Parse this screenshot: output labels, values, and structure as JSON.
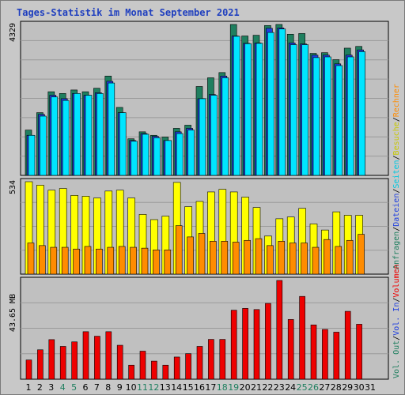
{
  "title": "Tages-Statistik im Monat September 2021",
  "colors": {
    "anfragen": "#1f7f5f",
    "dateien": "#1f3fdf",
    "seiten": "#00e5ff",
    "besuche": "#ffff00",
    "rechner": "#ff8c00",
    "volumen": "#ee0000",
    "weekend_label": "#1f7f5f",
    "label_default": "#000000"
  },
  "legend_right": {
    "top": [
      {
        "text": "Anfragen",
        "color": "#1f7f5f"
      },
      {
        "text": "/",
        "color": "#000000"
      },
      {
        "text": "Dateien",
        "color": "#1f3fdf"
      },
      {
        "text": "/",
        "color": "#000000"
      },
      {
        "text": "Seiten",
        "color": "#00c8e0"
      },
      {
        "text": "/",
        "color": "#000000"
      },
      {
        "text": "Besuche",
        "color": "#c8c800"
      },
      {
        "text": "/",
        "color": "#000000"
      },
      {
        "text": "Rechner",
        "color": "#ff8c00"
      }
    ],
    "bottom": [
      {
        "text": "Vol. Out",
        "color": "#1f7f5f"
      },
      {
        "text": "/",
        "color": "#000000"
      },
      {
        "text": "Vol. In",
        "color": "#1f3fdf"
      },
      {
        "text": "/",
        "color": "#000000"
      },
      {
        "text": "Volumen",
        "color": "#ee0000"
      }
    ]
  },
  "chart_data": [
    {
      "type": "bar",
      "panel": "top",
      "ymax_label": "4329",
      "ylim": [
        0,
        4329
      ],
      "categories": [
        "1",
        "2",
        "3",
        "4",
        "5",
        "6",
        "7",
        "8",
        "9",
        "10",
        "11",
        "12",
        "13",
        "14",
        "15",
        "16",
        "17",
        "18",
        "19",
        "20",
        "21",
        "22",
        "23",
        "24",
        "25",
        "26",
        "27",
        "28",
        "29",
        "30"
      ],
      "series": [
        {
          "name": "Anfragen",
          "key": "anfragen",
          "values": [
            1300,
            1800,
            2400,
            2350,
            2450,
            2400,
            2500,
            2850,
            1950,
            1050,
            1250,
            1150,
            1100,
            1350,
            1440,
            2550,
            2800,
            2950,
            4330,
            4000,
            4020,
            4300,
            4330,
            4050,
            4070,
            3500,
            3520,
            3320,
            3650,
            3700
          ]
        },
        {
          "name": "Dateien",
          "key": "dateien",
          "values": [
            1150,
            1750,
            2300,
            2200,
            2350,
            2300,
            2370,
            2700,
            1800,
            1000,
            1200,
            1120,
            1000,
            1250,
            1350,
            2200,
            2320,
            2850,
            4000,
            3790,
            3800,
            4220,
            4230,
            3800,
            3770,
            3450,
            3450,
            3200,
            3450,
            3600
          ]
        },
        {
          "name": "Seiten",
          "key": "seiten",
          "values": [
            1150,
            1700,
            2250,
            2150,
            2350,
            2300,
            2350,
            2650,
            1800,
            980,
            1180,
            1080,
            1000,
            1200,
            1300,
            2200,
            2300,
            2800,
            3990,
            3780,
            3790,
            4100,
            4200,
            3750,
            3750,
            3380,
            3400,
            3150,
            3400,
            3550
          ]
        }
      ]
    },
    {
      "type": "bar",
      "panel": "middle",
      "ymax_label": "534",
      "ylim": [
        0,
        534
      ],
      "categories": [
        "1",
        "2",
        "3",
        "4",
        "5",
        "6",
        "7",
        "8",
        "9",
        "10",
        "11",
        "12",
        "13",
        "14",
        "15",
        "16",
        "17",
        "18",
        "19",
        "20",
        "21",
        "22",
        "23",
        "24",
        "25",
        "26",
        "27",
        "28",
        "29",
        "30"
      ],
      "series": [
        {
          "name": "Besuche",
          "key": "besuche",
          "values": [
            534,
            514,
            485,
            495,
            455,
            450,
            440,
            480,
            485,
            440,
            345,
            315,
            335,
            530,
            390,
            420,
            475,
            490,
            475,
            445,
            385,
            220,
            320,
            330,
            380,
            290,
            255,
            360,
            340,
            340
          ]
        },
        {
          "name": "Rechner",
          "key": "rechner",
          "values": [
            180,
            165,
            155,
            155,
            145,
            160,
            145,
            155,
            160,
            155,
            150,
            140,
            140,
            280,
            215,
            235,
            190,
            190,
            185,
            195,
            205,
            165,
            190,
            180,
            180,
            155,
            200,
            160,
            195,
            230
          ]
        }
      ]
    },
    {
      "type": "bar",
      "panel": "bottom",
      "ymax_label": "43.65 MB",
      "ylim": [
        0,
        43.65
      ],
      "categories": [
        "1",
        "2",
        "3",
        "4",
        "5",
        "6",
        "7",
        "8",
        "9",
        "10",
        "11",
        "12",
        "13",
        "14",
        "15",
        "16",
        "17",
        "18",
        "19",
        "20",
        "21",
        "22",
        "23",
        "24",
        "25",
        "26",
        "27",
        "28",
        "29",
        "30"
      ],
      "series": [
        {
          "name": "Volumen",
          "key": "volumen",
          "values": [
            8.5,
            13,
            17.5,
            14.5,
            16.5,
            21,
            19,
            21,
            15,
            6.2,
            12.4,
            8,
            6.2,
            9.8,
            11.3,
            14.5,
            17.6,
            17.6,
            30.5,
            31.3,
            30.8,
            33.5,
            43.65,
            26.4,
            36.6,
            24,
            22,
            20.8,
            30,
            24.3
          ]
        }
      ]
    }
  ],
  "x_labels": [
    {
      "text": "1",
      "weekend": false
    },
    {
      "text": "2",
      "weekend": false
    },
    {
      "text": "3",
      "weekend": false
    },
    {
      "text": "4",
      "weekend": true
    },
    {
      "text": "5",
      "weekend": true
    },
    {
      "text": "6",
      "weekend": false
    },
    {
      "text": "7",
      "weekend": false
    },
    {
      "text": "8",
      "weekend": false
    },
    {
      "text": "9",
      "weekend": false
    },
    {
      "text": "10",
      "weekend": false
    },
    {
      "text": "11",
      "weekend": true
    },
    {
      "text": "12",
      "weekend": true
    },
    {
      "text": "13",
      "weekend": false
    },
    {
      "text": "14",
      "weekend": false
    },
    {
      "text": "15",
      "weekend": false
    },
    {
      "text": "16",
      "weekend": false
    },
    {
      "text": "17",
      "weekend": false
    },
    {
      "text": "18",
      "weekend": true
    },
    {
      "text": "19",
      "weekend": true
    },
    {
      "text": "20",
      "weekend": false
    },
    {
      "text": "21",
      "weekend": false
    },
    {
      "text": "22",
      "weekend": false
    },
    {
      "text": "23",
      "weekend": false
    },
    {
      "text": "24",
      "weekend": false
    },
    {
      "text": "25",
      "weekend": true
    },
    {
      "text": "26",
      "weekend": true
    },
    {
      "text": "27",
      "weekend": false
    },
    {
      "text": "28",
      "weekend": false
    },
    {
      "text": "29",
      "weekend": false
    },
    {
      "text": "30",
      "weekend": false
    },
    {
      "text": "31",
      "weekend": false
    }
  ]
}
